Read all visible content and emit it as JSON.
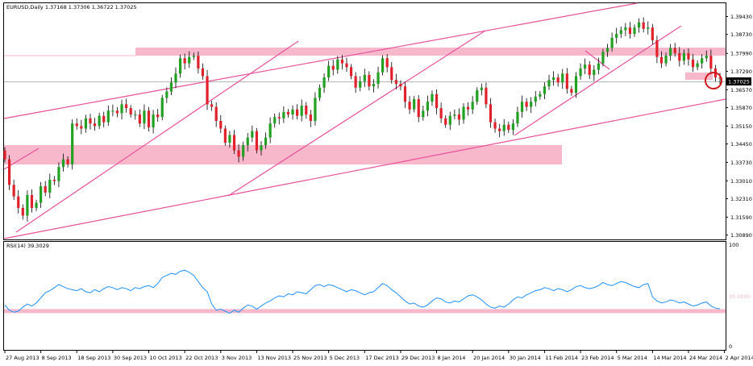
{
  "header": {
    "symbol_info": "EURUSD,Daily  1.37168 1.37306 1.36722 1.37025"
  },
  "rsi_panel": {
    "label": "RSI(14) 39.3029",
    "level_labels": [
      "100",
      "0"
    ],
    "level_label_inline": "30.0000"
  },
  "current_price": "1.37025",
  "colors": {
    "bull": "#22a022",
    "bear": "#e0202a",
    "trendline": "#e8509a",
    "zone": "#f7b8cc",
    "rsi_line": "#1e90ff",
    "rsi_level": "#f7b8cc",
    "marker": "#d01818"
  },
  "chart_data": [
    {
      "type": "candlestick",
      "title": "EURUSD,Daily",
      "ohlc_last": {
        "open": 1.37168,
        "high": 1.37306,
        "low": 1.36722,
        "close": 1.37025
      },
      "ylim": [
        1.3075,
        1.3995
      ],
      "y_ticks": [
        "1.39430",
        "1.38730",
        "1.37990",
        "1.37290",
        "1.36570",
        "1.35870",
        "1.35150",
        "1.34450",
        "1.33730",
        "1.33010",
        "1.32310",
        "1.31590",
        "1.30890"
      ],
      "y_tick_values": [
        1.3943,
        1.3873,
        1.3799,
        1.3729,
        1.3657,
        1.3587,
        1.3515,
        1.3445,
        1.3373,
        1.3301,
        1.3231,
        1.3159,
        1.3089
      ],
      "x_ticks": [
        "27 Aug 2013",
        "8 Sep 2013",
        "18 Sep 2013",
        "30 Sep 2013",
        "10 Oct 2013",
        "22 Oct 2013",
        "3 Nov 2013",
        "13 Nov 2013",
        "25 Nov 2013",
        "5 Dec 2013",
        "17 Dec 2013",
        "29 Dec 2013",
        "8 Jan 2014",
        "20 Jan 2014",
        "30 Jan 2014",
        "11 Feb 2014",
        "23 Feb 2014",
        "5 Mar 2014",
        "14 Mar 2014",
        "24 Mar 2014",
        "2 Apr 2014"
      ],
      "x_tick_bar_index": [
        0,
        8,
        16,
        24,
        32,
        40,
        48,
        56,
        64,
        72,
        80,
        88,
        96,
        104,
        112,
        120,
        128,
        136,
        144,
        152,
        160
      ],
      "closes": [
        1.3385,
        1.3285,
        1.324,
        1.3195,
        1.3165,
        1.3245,
        1.3195,
        1.3215,
        1.328,
        1.3255,
        1.3305,
        1.33,
        1.3355,
        1.3385,
        1.3365,
        1.3525,
        1.3515,
        1.3505,
        1.3545,
        1.3525,
        1.3515,
        1.3555,
        1.353,
        1.3575,
        1.3575,
        1.3565,
        1.36,
        1.3585,
        1.356,
        1.356,
        1.3525,
        1.3575,
        1.351,
        1.356,
        1.355,
        1.3625,
        1.365,
        1.3685,
        1.372,
        1.378,
        1.376,
        1.3785,
        1.379,
        1.374,
        1.371,
        1.36,
        1.359,
        1.3535,
        1.3505,
        1.345,
        1.348,
        1.342,
        1.3395,
        1.344,
        1.347,
        1.3495,
        1.342,
        1.344,
        1.347,
        1.3525,
        1.355,
        1.3545,
        1.357,
        1.356,
        1.358,
        1.3555,
        1.3595,
        1.356,
        1.3535,
        1.3625,
        1.3665,
        1.3705,
        1.375,
        1.3735,
        1.3775,
        1.376,
        1.3745,
        1.371,
        1.3665,
        1.369,
        1.3715,
        1.367,
        1.368,
        1.3725,
        1.378,
        1.3745,
        1.3695,
        1.368,
        1.367,
        1.361,
        1.358,
        1.362,
        1.355,
        1.3575,
        1.361,
        1.364,
        1.3585,
        1.3545,
        1.352,
        1.3555,
        1.356,
        1.354,
        1.359,
        1.358,
        1.361,
        1.3655,
        1.3665,
        1.36,
        1.353,
        1.3505,
        1.3495,
        1.352,
        1.35,
        1.3525,
        1.357,
        1.361,
        1.359,
        1.361,
        1.363,
        1.364,
        1.367,
        1.3695,
        1.3705,
        1.3685,
        1.372,
        1.366,
        1.3645,
        1.371,
        1.374,
        1.3755,
        1.3715,
        1.3735,
        1.376,
        1.3805,
        1.382,
        1.386,
        1.3875,
        1.389,
        1.39,
        1.3875,
        1.39,
        1.392,
        1.3895,
        1.39,
        1.385,
        1.3785,
        1.376,
        1.379,
        1.382,
        1.38,
        1.377,
        1.38,
        1.3775,
        1.3745,
        1.376,
        1.378,
        1.379,
        1.374,
        1.3705,
        1.3703
      ],
      "rsi": {
        "levels": [
          30,
          100,
          0
        ],
        "values": [
          43,
          38,
          36,
          37,
          41,
          44,
          42,
          45,
          50,
          55,
          57,
          60,
          63,
          61,
          59,
          58,
          57,
          59,
          56,
          55,
          58,
          56,
          59,
          61,
          60,
          58,
          60,
          59,
          57,
          60,
          59,
          61,
          62,
          60,
          64,
          70,
          72,
          74,
          73,
          76,
          77,
          75,
          72,
          66,
          60,
          56,
          44,
          38,
          39,
          37,
          35,
          38,
          36,
          40,
          43,
          42,
          39,
          42,
          45,
          47,
          50,
          52,
          51,
          54,
          53,
          56,
          55,
          54,
          58,
          62,
          63,
          61,
          63,
          62,
          60,
          58,
          56,
          58,
          57,
          55,
          53,
          55,
          56,
          60,
          64,
          62,
          58,
          55,
          51,
          47,
          44,
          45,
          42,
          41,
          43,
          47,
          50,
          49,
          46,
          45,
          47,
          46,
          49,
          52,
          53,
          51,
          48,
          44,
          41,
          40,
          42,
          41,
          44,
          48,
          51,
          50,
          53,
          55,
          57,
          58,
          60,
          59,
          57,
          59,
          58,
          56,
          58,
          61,
          62,
          60,
          59,
          60,
          62,
          65,
          63,
          62,
          64,
          66,
          65,
          63,
          61,
          60,
          63,
          64,
          51,
          47,
          45,
          46,
          48,
          47,
          45,
          46,
          44,
          42,
          43,
          45,
          46,
          42,
          40,
          39.3
        ]
      }
    }
  ]
}
